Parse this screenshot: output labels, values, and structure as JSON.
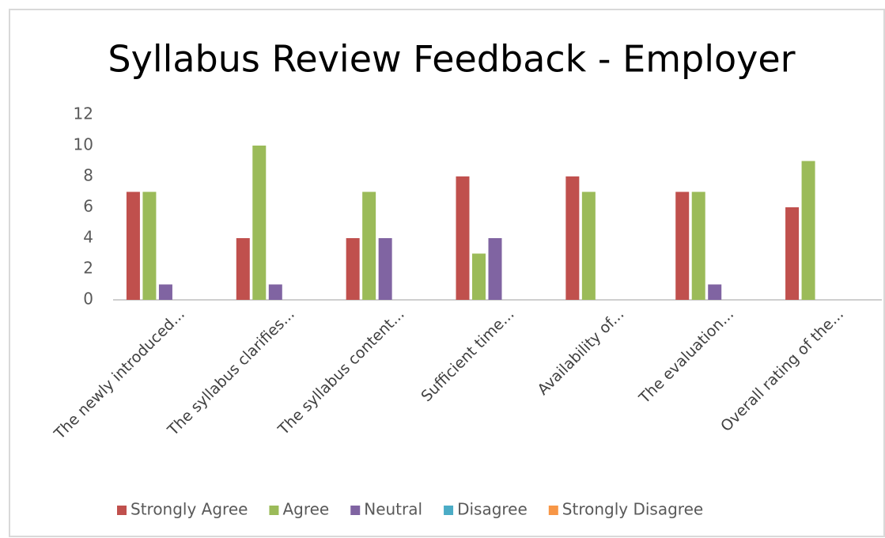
{
  "chart_data": {
    "type": "bar",
    "title": "Syllabus Review Feedback - Employer",
    "categories": [
      "The newly introduced...",
      "The syllabus clarifies...",
      "The syllabus content...",
      "Sufficient time...",
      "Availability of...",
      "The evaluation...",
      "Overall rating of the..."
    ],
    "series": [
      {
        "name": "Strongly Agree",
        "color": "#c0504d",
        "values": [
          7,
          4,
          4,
          8,
          8,
          7,
          6
        ]
      },
      {
        "name": "Agree",
        "color": "#9bbb59",
        "values": [
          7,
          10,
          7,
          3,
          7,
          7,
          9
        ]
      },
      {
        "name": "Neutral",
        "color": "#8064a2",
        "values": [
          1,
          1,
          4,
          4,
          0,
          1,
          0
        ]
      },
      {
        "name": "Disagree",
        "color": "#4bacc6",
        "values": [
          0,
          0,
          0,
          0,
          0,
          0,
          0
        ]
      },
      {
        "name": "Strongly Disagree",
        "color": "#f79646",
        "values": [
          0,
          0,
          0,
          0,
          0,
          0,
          0
        ]
      }
    ],
    "ylim": [
      0,
      12
    ],
    "yticks": [
      0,
      2,
      4,
      6,
      8,
      10,
      12
    ],
    "grid": false,
    "legend": "bottom"
  }
}
